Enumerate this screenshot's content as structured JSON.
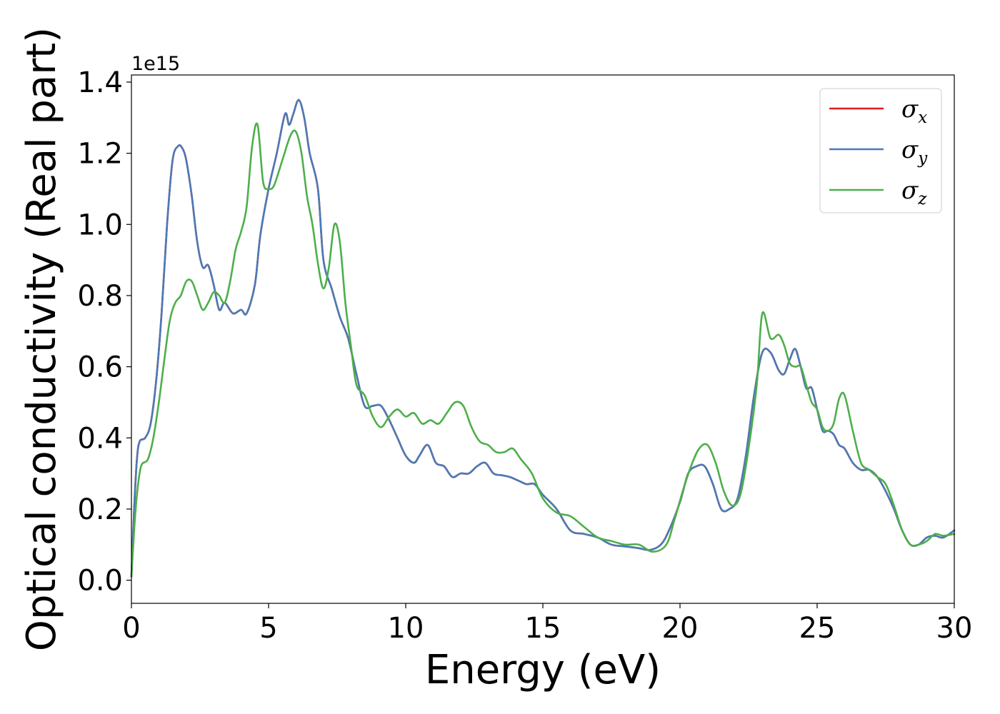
{
  "chart_data": {
    "type": "line",
    "xlabel": "Energy (eV)",
    "ylabel": "Optical conductivity (Real part)",
    "y_offset_text": "1e15",
    "y_scale": 1000000000000000.0,
    "xlim": [
      0,
      30
    ],
    "ylim": [
      -0.065,
      1.42
    ],
    "x_ticks": [
      0,
      5,
      10,
      15,
      20,
      25,
      30
    ],
    "x_tick_labels": [
      "0",
      "5",
      "10",
      "15",
      "20",
      "25",
      "30"
    ],
    "y_ticks": [
      0.0,
      0.2,
      0.4,
      0.6,
      0.8,
      1.0,
      1.2,
      1.4
    ],
    "y_tick_labels": [
      "0.0",
      "0.2",
      "0.4",
      "0.6",
      "0.8",
      "1.0",
      "1.2",
      "1.4"
    ],
    "grid": false,
    "legend_position": "top-right",
    "series": [
      {
        "name": "σ_x",
        "sym": "σ",
        "sub": "x",
        "color": "#e41a1c",
        "x": [
          0.0,
          0.1,
          0.2,
          0.3,
          0.5,
          0.7,
          0.9,
          1.1,
          1.3,
          1.5,
          1.7,
          1.85,
          2.0,
          2.2,
          2.4,
          2.6,
          2.8,
          3.0,
          3.2,
          3.4,
          3.7,
          4.0,
          4.2,
          4.5,
          4.7,
          5.0,
          5.3,
          5.6,
          5.75,
          5.9,
          6.1,
          6.3,
          6.5,
          6.8,
          7.0,
          7.3,
          7.6,
          7.9,
          8.2,
          8.5,
          8.8,
          9.1,
          9.4,
          9.7,
          10.0,
          10.3,
          10.5,
          10.8,
          11.1,
          11.4,
          11.7,
          12.0,
          12.3,
          12.6,
          12.9,
          13.2,
          13.5,
          13.8,
          14.1,
          14.4,
          14.7,
          15.0,
          15.5,
          16.0,
          16.5,
          17.0,
          17.5,
          18.0,
          18.5,
          18.9,
          19.3,
          19.6,
          20.0,
          20.3,
          20.6,
          20.9,
          21.2,
          21.5,
          21.8,
          22.1,
          22.4,
          22.7,
          23.0,
          23.3,
          23.6,
          23.8,
          24.0,
          24.2,
          24.4,
          24.6,
          24.8,
          25.0,
          25.2,
          25.4,
          25.6,
          25.8,
          26.0,
          26.3,
          26.6,
          26.9,
          27.2,
          27.5,
          27.8,
          28.1,
          28.4,
          28.7,
          29.0,
          29.3,
          29.6,
          30.0
        ],
        "y": [
          0.01,
          0.2,
          0.34,
          0.39,
          0.4,
          0.44,
          0.56,
          0.75,
          1.0,
          1.18,
          1.22,
          1.215,
          1.18,
          1.08,
          0.95,
          0.88,
          0.885,
          0.83,
          0.76,
          0.78,
          0.75,
          0.76,
          0.75,
          0.83,
          0.97,
          1.1,
          1.2,
          1.31,
          1.28,
          1.31,
          1.35,
          1.3,
          1.2,
          1.1,
          0.9,
          0.82,
          0.74,
          0.68,
          0.58,
          0.49,
          0.49,
          0.49,
          0.45,
          0.4,
          0.35,
          0.33,
          0.35,
          0.38,
          0.33,
          0.32,
          0.29,
          0.3,
          0.3,
          0.32,
          0.33,
          0.3,
          0.295,
          0.29,
          0.28,
          0.27,
          0.27,
          0.24,
          0.2,
          0.14,
          0.13,
          0.12,
          0.1,
          0.095,
          0.09,
          0.085,
          0.1,
          0.14,
          0.22,
          0.3,
          0.32,
          0.32,
          0.27,
          0.2,
          0.2,
          0.23,
          0.35,
          0.52,
          0.64,
          0.64,
          0.59,
          0.58,
          0.62,
          0.65,
          0.6,
          0.54,
          0.54,
          0.48,
          0.42,
          0.42,
          0.41,
          0.38,
          0.37,
          0.33,
          0.31,
          0.31,
          0.29,
          0.25,
          0.2,
          0.14,
          0.1,
          0.1,
          0.12,
          0.125,
          0.12,
          0.14
        ]
      },
      {
        "name": "σ_y",
        "sym": "σ",
        "sub": "y",
        "color": "#4a7ab7",
        "x": [
          0.0,
          0.1,
          0.2,
          0.3,
          0.5,
          0.7,
          0.9,
          1.1,
          1.3,
          1.5,
          1.7,
          1.85,
          2.0,
          2.2,
          2.4,
          2.6,
          2.8,
          3.0,
          3.2,
          3.4,
          3.7,
          4.0,
          4.2,
          4.5,
          4.7,
          5.0,
          5.3,
          5.6,
          5.75,
          5.9,
          6.1,
          6.3,
          6.5,
          6.8,
          7.0,
          7.3,
          7.6,
          7.9,
          8.2,
          8.5,
          8.8,
          9.1,
          9.4,
          9.7,
          10.0,
          10.3,
          10.5,
          10.8,
          11.1,
          11.4,
          11.7,
          12.0,
          12.3,
          12.6,
          12.9,
          13.2,
          13.5,
          13.8,
          14.1,
          14.4,
          14.7,
          15.0,
          15.5,
          16.0,
          16.5,
          17.0,
          17.5,
          18.0,
          18.5,
          18.9,
          19.3,
          19.6,
          20.0,
          20.3,
          20.6,
          20.9,
          21.2,
          21.5,
          21.8,
          22.1,
          22.4,
          22.7,
          23.0,
          23.3,
          23.6,
          23.8,
          24.0,
          24.2,
          24.4,
          24.6,
          24.8,
          25.0,
          25.2,
          25.4,
          25.6,
          25.8,
          26.0,
          26.3,
          26.6,
          26.9,
          27.2,
          27.5,
          27.8,
          28.1,
          28.4,
          28.7,
          29.0,
          29.3,
          29.6,
          30.0
        ],
        "y": [
          0.01,
          0.2,
          0.34,
          0.39,
          0.4,
          0.44,
          0.56,
          0.75,
          1.0,
          1.18,
          1.22,
          1.215,
          1.18,
          1.08,
          0.95,
          0.88,
          0.885,
          0.83,
          0.76,
          0.78,
          0.75,
          0.76,
          0.75,
          0.83,
          0.97,
          1.1,
          1.2,
          1.31,
          1.28,
          1.31,
          1.35,
          1.3,
          1.2,
          1.1,
          0.9,
          0.82,
          0.74,
          0.68,
          0.58,
          0.49,
          0.49,
          0.49,
          0.45,
          0.4,
          0.35,
          0.33,
          0.35,
          0.38,
          0.33,
          0.32,
          0.29,
          0.3,
          0.3,
          0.32,
          0.33,
          0.3,
          0.295,
          0.29,
          0.28,
          0.27,
          0.27,
          0.24,
          0.2,
          0.14,
          0.13,
          0.12,
          0.1,
          0.095,
          0.09,
          0.085,
          0.1,
          0.14,
          0.22,
          0.3,
          0.32,
          0.32,
          0.27,
          0.2,
          0.2,
          0.23,
          0.35,
          0.52,
          0.64,
          0.64,
          0.59,
          0.58,
          0.62,
          0.65,
          0.6,
          0.54,
          0.54,
          0.48,
          0.42,
          0.42,
          0.41,
          0.38,
          0.37,
          0.33,
          0.31,
          0.31,
          0.29,
          0.25,
          0.2,
          0.14,
          0.1,
          0.1,
          0.12,
          0.125,
          0.12,
          0.14
        ]
      },
      {
        "name": "σ_z",
        "sym": "σ",
        "sub": "z",
        "color": "#4daf4a",
        "x": [
          0.0,
          0.1,
          0.2,
          0.35,
          0.6,
          0.8,
          1.0,
          1.2,
          1.4,
          1.6,
          1.8,
          2.0,
          2.2,
          2.4,
          2.6,
          2.8,
          3.0,
          3.2,
          3.4,
          3.6,
          3.8,
          4.0,
          4.2,
          4.4,
          4.6,
          4.8,
          5.0,
          5.2,
          5.5,
          5.8,
          6.0,
          6.2,
          6.4,
          6.6,
          6.8,
          7.0,
          7.2,
          7.4,
          7.6,
          7.8,
          8.0,
          8.2,
          8.5,
          8.8,
          9.1,
          9.4,
          9.7,
          10.0,
          10.3,
          10.6,
          10.9,
          11.2,
          11.5,
          11.8,
          12.1,
          12.4,
          12.7,
          13.0,
          13.3,
          13.6,
          13.9,
          14.2,
          14.6,
          15.0,
          15.5,
          16.0,
          16.5,
          17.0,
          17.5,
          18.0,
          18.5,
          19.0,
          19.5,
          19.8,
          20.1,
          20.4,
          20.7,
          21.0,
          21.3,
          21.6,
          21.9,
          22.2,
          22.5,
          22.8,
          23.0,
          23.3,
          23.6,
          23.8,
          24.0,
          24.2,
          24.4,
          24.6,
          24.8,
          25.0,
          25.2,
          25.4,
          25.6,
          25.8,
          26.0,
          26.3,
          26.6,
          26.9,
          27.2,
          27.5,
          27.8,
          28.1,
          28.4,
          28.7,
          29.0,
          29.3,
          29.6,
          30.0
        ],
        "y": [
          0.01,
          0.14,
          0.24,
          0.32,
          0.34,
          0.4,
          0.5,
          0.62,
          0.73,
          0.78,
          0.8,
          0.84,
          0.84,
          0.8,
          0.76,
          0.78,
          0.81,
          0.8,
          0.78,
          0.84,
          0.93,
          0.98,
          1.05,
          1.22,
          1.28,
          1.12,
          1.1,
          1.11,
          1.18,
          1.25,
          1.26,
          1.2,
          1.08,
          1.0,
          0.89,
          0.82,
          0.88,
          1.0,
          0.95,
          0.78,
          0.66,
          0.55,
          0.52,
          0.46,
          0.43,
          0.46,
          0.48,
          0.46,
          0.47,
          0.44,
          0.45,
          0.44,
          0.47,
          0.5,
          0.49,
          0.43,
          0.39,
          0.38,
          0.36,
          0.36,
          0.37,
          0.34,
          0.3,
          0.23,
          0.19,
          0.18,
          0.15,
          0.12,
          0.11,
          0.1,
          0.1,
          0.08,
          0.1,
          0.17,
          0.25,
          0.32,
          0.37,
          0.38,
          0.33,
          0.25,
          0.21,
          0.24,
          0.37,
          0.55,
          0.75,
          0.68,
          0.69,
          0.66,
          0.61,
          0.6,
          0.6,
          0.55,
          0.5,
          0.48,
          0.43,
          0.42,
          0.44,
          0.51,
          0.52,
          0.42,
          0.33,
          0.31,
          0.29,
          0.27,
          0.21,
          0.14,
          0.1,
          0.1,
          0.11,
          0.13,
          0.125,
          0.13
        ]
      }
    ]
  }
}
